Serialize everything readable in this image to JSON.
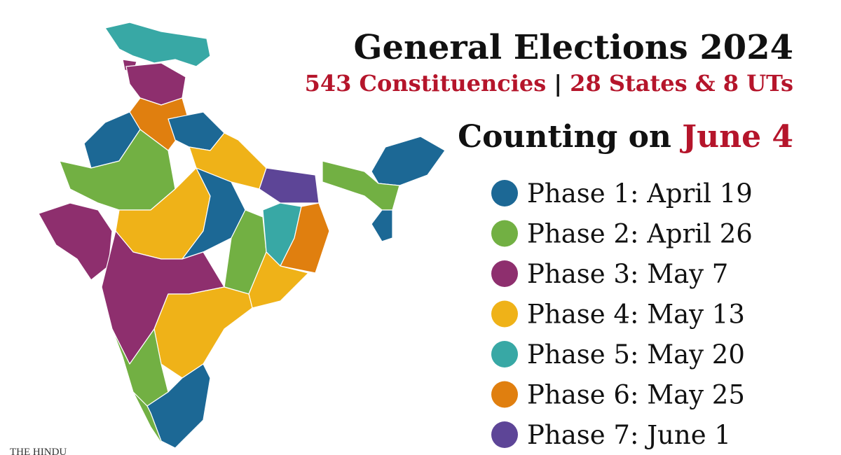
{
  "header": {
    "title": "General Elections 2024",
    "subtitle": [
      "543 Constituencies",
      "|",
      "28 States & 8 UTs"
    ]
  },
  "counting": {
    "prefix": "Counting on",
    "date": "June 4"
  },
  "legend": {
    "items": [
      {
        "label": "Phase 1: April 19",
        "color": "#1c6895"
      },
      {
        "label": "Phase 2: April 26",
        "color": "#72b043"
      },
      {
        "label": "Phase 3: May 7",
        "color": "#8e2f6e"
      },
      {
        "label": "Phase 4: May 13",
        "color": "#efb218"
      },
      {
        "label": "Phase 5: May 20",
        "color": "#38a8a5"
      },
      {
        "label": "Phase 6: May 25",
        "color": "#e07f0f"
      },
      {
        "label": "Phase 7: June 1",
        "color": "#5d4597"
      }
    ]
  },
  "logo": {
    "text": "THE HINDU"
  }
}
